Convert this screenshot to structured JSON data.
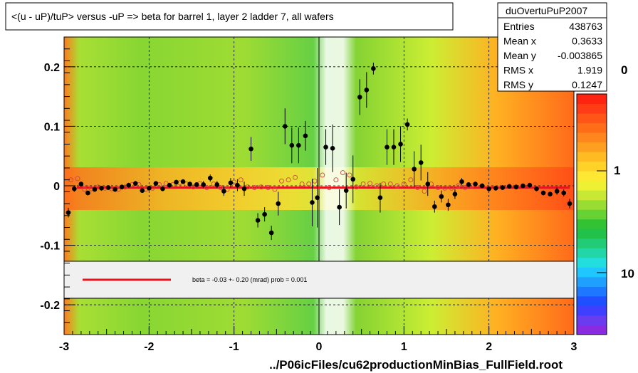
{
  "title": "<(u - uP)/tuP> versus  -uP => beta for barrel 1, layer 2 ladder 7, all wafers",
  "stats": {
    "name": "duOvertuPuP2007",
    "rows": [
      {
        "label": "Entries",
        "value": "438763"
      },
      {
        "label": "Mean x",
        "value": "0.3633"
      },
      {
        "label": "Mean y",
        "value": "-0.003865"
      },
      {
        "label": "RMS x",
        "value": "1.919"
      },
      {
        "label": "RMS y",
        "value": "0.1247"
      }
    ]
  },
  "fit_legend": "beta =   -0.03 +-  0.20 (mrad) prob = 0.001",
  "footer": "../P06icFiles/cu62productionMinBias_FullField.root",
  "colorbar": {
    "tick_labels": [
      "1",
      "10"
    ],
    "top_partial_label": "0",
    "colors": [
      "#8a2be2",
      "#6a3cf0",
      "#3f40ff",
      "#1f4fff",
      "#1f78ff",
      "#1fa0ff",
      "#1fc6ff",
      "#22dede",
      "#22d6a8",
      "#22cc77",
      "#22c24a",
      "#33c233",
      "#66d233",
      "#99dd33",
      "#c8e833",
      "#eef033",
      "#ffe833",
      "#ffd22a",
      "#ffbb22",
      "#ff9f1f",
      "#ff861c",
      "#ff6d19",
      "#ff5517",
      "#ff3c15",
      "#ff2412"
    ]
  },
  "chart_data": {
    "type": "scatter",
    "xlim": [
      -3,
      3
    ],
    "ylim": [
      -0.25,
      0.25
    ],
    "x_ticks": [
      -3,
      -2,
      -1,
      0,
      1,
      2,
      3
    ],
    "x_tick_labels": [
      "-3",
      "-2",
      "-1",
      "0",
      "1",
      "2",
      "3"
    ],
    "y_ticks": [
      -0.2,
      -0.1,
      0,
      0.1,
      0.2
    ],
    "y_tick_labels": [
      "-0.2",
      "-0.1",
      "0",
      "0.1",
      "0.2"
    ],
    "grid": true,
    "fit_line": {
      "y": -0.003,
      "x_range": [
        -2.85,
        2.95
      ],
      "color": "#e8141c"
    },
    "series": [
      {
        "marker": "filled-circle",
        "color": "#000000",
        "x": [
          -2.95,
          -2.88,
          -2.8,
          -2.72,
          -2.64,
          -2.56,
          -2.48,
          -2.4,
          -2.32,
          -2.24,
          -2.16,
          -2.08,
          -2.0,
          -1.92,
          -1.84,
          -1.76,
          -1.68,
          -1.6,
          -1.52,
          -1.44,
          -1.36,
          -1.28,
          -1.2,
          -1.12,
          -1.04,
          -0.96,
          -0.88,
          -0.8,
          -0.72,
          -0.64,
          -0.56,
          -0.48,
          -0.4,
          -0.32,
          -0.24,
          -0.16,
          -0.08,
          -0.02,
          0.08,
          0.16,
          0.24,
          0.32,
          0.4,
          0.48,
          0.56,
          0.64,
          0.72,
          0.8,
          0.88,
          0.96,
          1.04,
          1.12,
          1.2,
          1.28,
          1.36,
          1.44,
          1.52,
          1.6,
          1.68,
          1.76,
          1.84,
          1.92,
          2.0,
          2.08,
          2.16,
          2.24,
          2.32,
          2.4,
          2.48,
          2.56,
          2.64,
          2.72,
          2.8,
          2.88,
          2.95
        ],
        "y": [
          -0.045,
          -0.005,
          0.003,
          -0.012,
          -0.006,
          -0.004,
          -0.003,
          -0.006,
          -0.002,
          0.001,
          0.004,
          -0.008,
          -0.004,
          0.004,
          -0.005,
          0.001,
          0.006,
          0.007,
          0.003,
          0.002,
          0.002,
          0.013,
          0.002,
          -0.009,
          0.005,
          0.001,
          -0.005,
          0.062,
          -0.058,
          -0.048,
          -0.079,
          -0.03,
          0.1,
          0.068,
          0.068,
          0.084,
          -0.028,
          -0.02,
          0.065,
          0.063,
          -0.036,
          -0.008,
          0.011,
          0.149,
          0.161,
          0.197,
          -0.02,
          0.065,
          0.065,
          0.07,
          0.103,
          0.028,
          0.039,
          0.003,
          -0.035,
          -0.018,
          -0.032,
          -0.014,
          0.007,
          0.002,
          0.003,
          0.0,
          -0.005,
          -0.004,
          -0.003,
          -0.001,
          -0.002,
          0.0,
          0.001,
          -0.005,
          -0.012,
          -0.014,
          -0.009,
          -0.012,
          -0.03
        ],
        "yerr": [
          0.008,
          0.005,
          0.004,
          0.004,
          0.004,
          0.004,
          0.004,
          0.004,
          0.004,
          0.004,
          0.004,
          0.004,
          0.004,
          0.004,
          0.004,
          0.004,
          0.004,
          0.004,
          0.004,
          0.004,
          0.006,
          0.006,
          0.006,
          0.008,
          0.008,
          0.01,
          0.012,
          0.02,
          0.012,
          0.012,
          0.012,
          0.02,
          0.03,
          0.03,
          0.03,
          0.025,
          0.04,
          0.05,
          0.03,
          0.04,
          0.03,
          0.03,
          0.04,
          0.03,
          0.03,
          0.01,
          0.025,
          0.03,
          0.03,
          0.03,
          0.01,
          0.03,
          0.03,
          0.02,
          0.01,
          0.01,
          0.01,
          0.008,
          0.006,
          0.004,
          0.004,
          0.004,
          0.004,
          0.004,
          0.004,
          0.004,
          0.004,
          0.004,
          0.004,
          0.004,
          0.004,
          0.004,
          0.006,
          0.006,
          0.008
        ]
      },
      {
        "marker": "open-circle",
        "color": "#cc4444",
        "x": [
          -2.92,
          -2.84,
          -2.76,
          -2.68,
          -2.6,
          -2.52,
          -2.44,
          -2.36,
          -2.28,
          -2.2,
          -2.12,
          -2.04,
          -1.96,
          -1.88,
          -1.8,
          -1.72,
          -1.64,
          -1.56,
          -1.48,
          -1.4,
          -1.32,
          -1.24,
          -1.16,
          -1.08,
          -1.0,
          -0.92,
          -0.84,
          -0.76,
          -0.68,
          -0.6,
          -0.52,
          -0.44,
          -0.36,
          -0.28,
          -0.2,
          -0.12,
          -0.05,
          0.04,
          0.12,
          0.2,
          0.28,
          0.36,
          0.44,
          0.52,
          0.6,
          0.68,
          0.76,
          0.84,
          0.92,
          1.0,
          1.08,
          1.16,
          1.24,
          1.32,
          1.4,
          1.48,
          1.56,
          1.64,
          1.72,
          1.8
        ],
        "y": [
          0.01,
          0.012,
          -0.006,
          -0.005,
          -0.002,
          -0.004,
          -0.005,
          -0.006,
          -0.002,
          0.002,
          0.002,
          -0.006,
          -0.004,
          0.002,
          0.004,
          0.002,
          0.005,
          0.003,
          -0.002,
          0.004,
          -0.003,
          0.003,
          -0.003,
          -0.006,
          0.006,
          0.01,
          -0.002,
          -0.003,
          -0.002,
          -0.003,
          -0.006,
          0.008,
          0.01,
          0.014,
          0.003,
          0.003,
          0.008,
          0.018,
          -0.003,
          0.01,
          0.022,
          0.018,
          -0.002,
          0.003,
          0.004,
          0.0,
          0.003,
          0.003,
          0.0,
          0.003,
          0.01,
          -0.003,
          -0.009,
          0.003,
          -0.003,
          -0.004,
          -0.004,
          0.0,
          -0.003,
          0.0
        ]
      }
    ]
  }
}
